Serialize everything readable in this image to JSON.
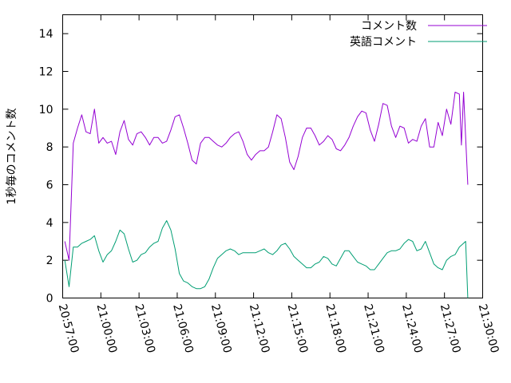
{
  "chart_data": {
    "type": "line",
    "title": "",
    "xlabel": "",
    "ylabel": "1秒毎のコメント数",
    "xlim": [
      "20:57:00",
      "21:30:00"
    ],
    "ylim": [
      0,
      15
    ],
    "x_ticks": [
      "20:57:00",
      "21:00:00",
      "21:03:00",
      "21:06:00",
      "21:09:00",
      "21:12:00",
      "21:15:00",
      "21:18:00",
      "21:21:00",
      "21:24:00",
      "21:27:00",
      "21:30:00"
    ],
    "y_ticks": [
      0,
      2,
      4,
      6,
      8,
      10,
      12,
      14
    ],
    "grid": false,
    "legend": "top-right",
    "series": [
      {
        "name": "コメント数",
        "color": "#9400d3",
        "points": [
          [
            "20:57:10",
            3.0
          ],
          [
            "20:57:30",
            2.0
          ],
          [
            "20:57:50",
            8.2
          ],
          [
            "20:58:10",
            9.0
          ],
          [
            "20:58:30",
            9.7
          ],
          [
            "20:58:50",
            8.8
          ],
          [
            "20:59:10",
            8.7
          ],
          [
            "20:59:30",
            10.0
          ],
          [
            "20:59:50",
            8.2
          ],
          [
            "21:00:10",
            8.5
          ],
          [
            "21:00:30",
            8.2
          ],
          [
            "21:00:50",
            8.3
          ],
          [
            "21:01:10",
            7.6
          ],
          [
            "21:01:30",
            8.8
          ],
          [
            "21:01:50",
            9.4
          ],
          [
            "21:02:10",
            8.4
          ],
          [
            "21:02:30",
            8.1
          ],
          [
            "21:02:50",
            8.7
          ],
          [
            "21:03:10",
            8.8
          ],
          [
            "21:03:30",
            8.5
          ],
          [
            "21:03:50",
            8.1
          ],
          [
            "21:04:10",
            8.5
          ],
          [
            "21:04:30",
            8.5
          ],
          [
            "21:04:50",
            8.2
          ],
          [
            "21:05:10",
            8.3
          ],
          [
            "21:05:30",
            8.9
          ],
          [
            "21:05:50",
            9.6
          ],
          [
            "21:06:10",
            9.7
          ],
          [
            "21:06:30",
            9.0
          ],
          [
            "21:06:50",
            8.2
          ],
          [
            "21:07:10",
            7.3
          ],
          [
            "21:07:30",
            7.1
          ],
          [
            "21:07:50",
            8.2
          ],
          [
            "21:08:10",
            8.5
          ],
          [
            "21:08:30",
            8.5
          ],
          [
            "21:08:50",
            8.3
          ],
          [
            "21:09:10",
            8.1
          ],
          [
            "21:09:30",
            8.0
          ],
          [
            "21:09:50",
            8.2
          ],
          [
            "21:10:10",
            8.5
          ],
          [
            "21:10:30",
            8.7
          ],
          [
            "21:10:50",
            8.8
          ],
          [
            "21:11:10",
            8.3
          ],
          [
            "21:11:30",
            7.6
          ],
          [
            "21:11:50",
            7.3
          ],
          [
            "21:12:10",
            7.6
          ],
          [
            "21:12:30",
            7.8
          ],
          [
            "21:12:50",
            7.8
          ],
          [
            "21:13:10",
            8.0
          ],
          [
            "21:13:30",
            8.8
          ],
          [
            "21:13:50",
            9.7
          ],
          [
            "21:14:10",
            9.5
          ],
          [
            "21:14:30",
            8.5
          ],
          [
            "21:14:50",
            7.2
          ],
          [
            "21:15:10",
            6.8
          ],
          [
            "21:15:30",
            7.5
          ],
          [
            "21:15:50",
            8.5
          ],
          [
            "21:16:10",
            9.0
          ],
          [
            "21:16:30",
            9.0
          ],
          [
            "21:16:50",
            8.6
          ],
          [
            "21:17:10",
            8.1
          ],
          [
            "21:17:30",
            8.3
          ],
          [
            "21:17:50",
            8.6
          ],
          [
            "21:18:10",
            8.4
          ],
          [
            "21:18:30",
            7.9
          ],
          [
            "21:18:50",
            7.8
          ],
          [
            "21:19:10",
            8.1
          ],
          [
            "21:19:30",
            8.5
          ],
          [
            "21:19:50",
            9.1
          ],
          [
            "21:20:10",
            9.6
          ],
          [
            "21:20:30",
            9.9
          ],
          [
            "21:20:50",
            9.8
          ],
          [
            "21:21:10",
            8.9
          ],
          [
            "21:21:30",
            8.3
          ],
          [
            "21:21:50",
            9.2
          ],
          [
            "21:22:10",
            10.3
          ],
          [
            "21:22:30",
            10.2
          ],
          [
            "21:22:50",
            9.1
          ],
          [
            "21:23:10",
            8.5
          ],
          [
            "21:23:30",
            9.1
          ],
          [
            "21:23:50",
            9.0
          ],
          [
            "21:24:10",
            8.2
          ],
          [
            "21:24:30",
            8.4
          ],
          [
            "21:24:50",
            8.3
          ],
          [
            "21:25:10",
            9.1
          ],
          [
            "21:25:30",
            9.5
          ],
          [
            "21:25:50",
            8.0
          ],
          [
            "21:26:10",
            8.0
          ],
          [
            "21:26:30",
            9.3
          ],
          [
            "21:26:50",
            8.6
          ],
          [
            "21:27:10",
            10.0
          ],
          [
            "21:27:30",
            9.2
          ],
          [
            "21:27:50",
            10.9
          ],
          [
            "21:28:10",
            10.8
          ],
          [
            "21:28:20",
            8.1
          ],
          [
            "21:28:30",
            10.9
          ],
          [
            "21:28:50",
            6.0
          ]
        ]
      },
      {
        "name": "英語コメント",
        "color": "#009e73",
        "points": [
          [
            "20:57:10",
            2.0
          ],
          [
            "20:57:30",
            0.6
          ],
          [
            "20:57:50",
            2.7
          ],
          [
            "20:58:10",
            2.7
          ],
          [
            "20:58:30",
            2.9
          ],
          [
            "20:58:50",
            3.0
          ],
          [
            "20:59:10",
            3.1
          ],
          [
            "20:59:30",
            3.3
          ],
          [
            "20:59:50",
            2.5
          ],
          [
            "21:00:10",
            1.9
          ],
          [
            "21:00:30",
            2.3
          ],
          [
            "21:00:50",
            2.5
          ],
          [
            "21:01:10",
            3.0
          ],
          [
            "21:01:30",
            3.6
          ],
          [
            "21:01:50",
            3.4
          ],
          [
            "21:02:10",
            2.6
          ],
          [
            "21:02:30",
            1.9
          ],
          [
            "21:02:50",
            2.0
          ],
          [
            "21:03:10",
            2.3
          ],
          [
            "21:03:30",
            2.4
          ],
          [
            "21:03:50",
            2.7
          ],
          [
            "21:04:10",
            2.9
          ],
          [
            "21:04:30",
            3.0
          ],
          [
            "21:04:50",
            3.7
          ],
          [
            "21:05:10",
            4.1
          ],
          [
            "21:05:30",
            3.6
          ],
          [
            "21:05:50",
            2.6
          ],
          [
            "21:06:10",
            1.3
          ],
          [
            "21:06:30",
            0.9
          ],
          [
            "21:06:50",
            0.8
          ],
          [
            "21:07:10",
            0.6
          ],
          [
            "21:07:30",
            0.5
          ],
          [
            "21:07:50",
            0.5
          ],
          [
            "21:08:10",
            0.6
          ],
          [
            "21:08:30",
            1.0
          ],
          [
            "21:08:50",
            1.6
          ],
          [
            "21:09:10",
            2.1
          ],
          [
            "21:09:30",
            2.3
          ],
          [
            "21:09:50",
            2.5
          ],
          [
            "21:10:10",
            2.6
          ],
          [
            "21:10:30",
            2.5
          ],
          [
            "21:10:50",
            2.3
          ],
          [
            "21:11:10",
            2.4
          ],
          [
            "21:11:30",
            2.4
          ],
          [
            "21:11:50",
            2.4
          ],
          [
            "21:12:10",
            2.4
          ],
          [
            "21:12:30",
            2.5
          ],
          [
            "21:12:50",
            2.6
          ],
          [
            "21:13:10",
            2.4
          ],
          [
            "21:13:30",
            2.3
          ],
          [
            "21:13:50",
            2.5
          ],
          [
            "21:14:10",
            2.8
          ],
          [
            "21:14:30",
            2.9
          ],
          [
            "21:14:50",
            2.6
          ],
          [
            "21:15:10",
            2.2
          ],
          [
            "21:15:30",
            2.0
          ],
          [
            "21:15:50",
            1.8
          ],
          [
            "21:16:10",
            1.6
          ],
          [
            "21:16:30",
            1.6
          ],
          [
            "21:16:50",
            1.8
          ],
          [
            "21:17:10",
            1.9
          ],
          [
            "21:17:30",
            2.2
          ],
          [
            "21:17:50",
            2.1
          ],
          [
            "21:18:10",
            1.8
          ],
          [
            "21:18:30",
            1.7
          ],
          [
            "21:18:50",
            2.1
          ],
          [
            "21:19:10",
            2.5
          ],
          [
            "21:19:30",
            2.5
          ],
          [
            "21:19:50",
            2.2
          ],
          [
            "21:20:10",
            1.9
          ],
          [
            "21:20:30",
            1.8
          ],
          [
            "21:20:50",
            1.7
          ],
          [
            "21:21:10",
            1.5
          ],
          [
            "21:21:30",
            1.5
          ],
          [
            "21:21:50",
            1.8
          ],
          [
            "21:22:10",
            2.1
          ],
          [
            "21:22:30",
            2.4
          ],
          [
            "21:22:50",
            2.5
          ],
          [
            "21:23:10",
            2.5
          ],
          [
            "21:23:30",
            2.6
          ],
          [
            "21:23:50",
            2.9
          ],
          [
            "21:24:10",
            3.1
          ],
          [
            "21:24:30",
            3.0
          ],
          [
            "21:24:50",
            2.5
          ],
          [
            "21:25:10",
            2.6
          ],
          [
            "21:25:30",
            3.0
          ],
          [
            "21:25:50",
            2.4
          ],
          [
            "21:26:10",
            1.8
          ],
          [
            "21:26:30",
            1.6
          ],
          [
            "21:26:50",
            1.5
          ],
          [
            "21:27:10",
            2.0
          ],
          [
            "21:27:30",
            2.2
          ],
          [
            "21:27:50",
            2.3
          ],
          [
            "21:28:10",
            2.7
          ],
          [
            "21:28:30",
            2.9
          ],
          [
            "21:28:40",
            3.0
          ],
          [
            "21:28:50",
            0.0
          ]
        ]
      }
    ]
  }
}
